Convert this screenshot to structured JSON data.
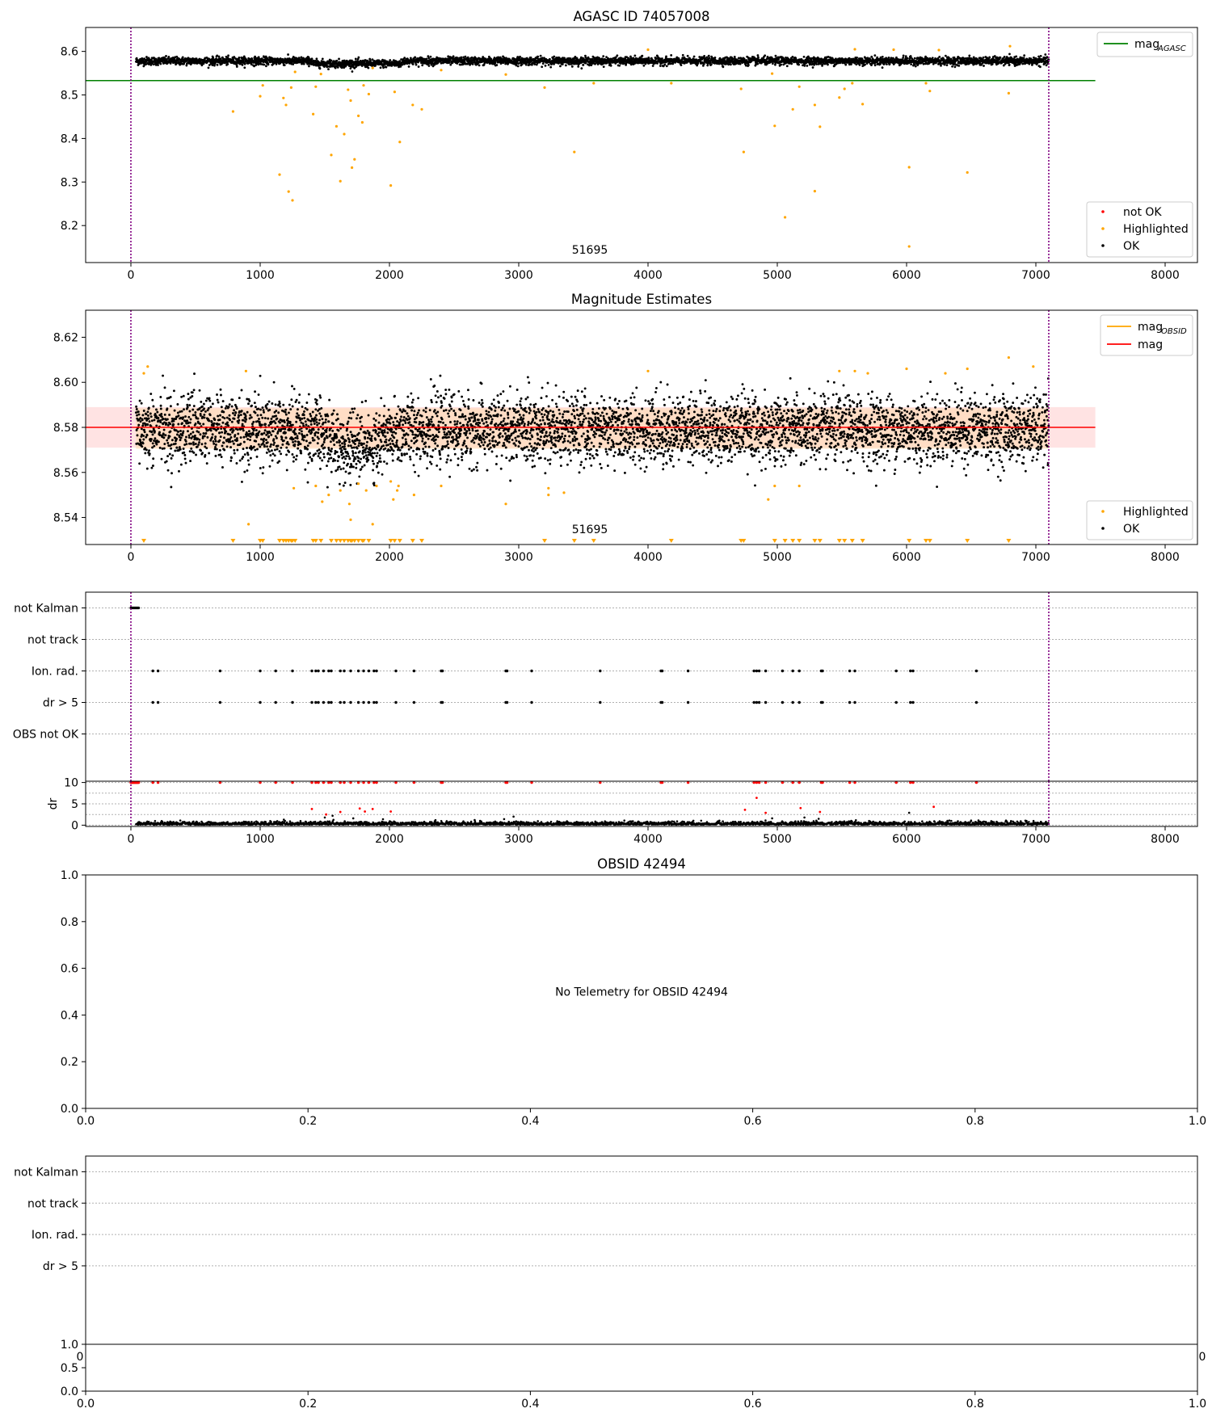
{
  "figure": {
    "panels": [
      "agasc-panel",
      "mag-estimates-panel",
      "flags-panel",
      "dr-panel",
      "obsid-panel",
      "obsid-flags-panel",
      "obsid-dr-panel"
    ]
  },
  "chart_data": [
    {
      "id": "agasc",
      "type": "scatter",
      "title": "AGASC ID 74057008",
      "xlim": [
        -350,
        8250
      ],
      "ylim": [
        8.115,
        8.655
      ],
      "xticks": [
        0,
        1000,
        2000,
        3000,
        4000,
        5000,
        6000,
        7000,
        8000
      ],
      "xtick_labels": [
        "0",
        "1000",
        "2000",
        "3000",
        "4000",
        "5000",
        "6000",
        "7000",
        "8000"
      ],
      "yticks": [
        8.2,
        8.3,
        8.4,
        8.5,
        8.6
      ],
      "ytick_labels": [
        "8.2",
        "8.3",
        "8.4",
        "8.5",
        "8.6"
      ],
      "grid": false,
      "vlines": [
        0,
        7100
      ],
      "annotation": "51695",
      "annotation_pos": [
        3550,
        8.135
      ],
      "mag_agasc": 8.533,
      "mag_agasc_xrange": [
        -350,
        7460
      ],
      "ok_band": {
        "x": [
          40,
          7100
        ],
        "center": 8.578,
        "spread": 0.012
      },
      "highlighted_points": [
        [
          790,
          8.462
        ],
        [
          1000,
          8.497
        ],
        [
          1020,
          8.522
        ],
        [
          1150,
          8.317
        ],
        [
          1180,
          8.493
        ],
        [
          1200,
          8.477
        ],
        [
          1220,
          8.278
        ],
        [
          1240,
          8.517
        ],
        [
          1250,
          8.258
        ],
        [
          1270,
          8.553
        ],
        [
          1410,
          8.456
        ],
        [
          1430,
          8.519
        ],
        [
          1470,
          8.548
        ],
        [
          1550,
          8.362
        ],
        [
          1590,
          8.428
        ],
        [
          1620,
          8.302
        ],
        [
          1650,
          8.41
        ],
        [
          1680,
          8.512
        ],
        [
          1700,
          8.487
        ],
        [
          1710,
          8.333
        ],
        [
          1730,
          8.352
        ],
        [
          1760,
          8.452
        ],
        [
          1790,
          8.437
        ],
        [
          1800,
          8.522
        ],
        [
          1840,
          8.502
        ],
        [
          1870,
          8.562
        ],
        [
          2010,
          8.292
        ],
        [
          2040,
          8.507
        ],
        [
          2080,
          8.392
        ],
        [
          2180,
          8.477
        ],
        [
          2250,
          8.467
        ],
        [
          2400,
          8.557
        ],
        [
          2900,
          8.547
        ],
        [
          3200,
          8.517
        ],
        [
          3430,
          8.369
        ],
        [
          3580,
          8.527
        ],
        [
          4180,
          8.527
        ],
        [
          4720,
          8.514
        ],
        [
          4740,
          8.369
        ],
        [
          4960,
          8.549
        ],
        [
          4980,
          8.429
        ],
        [
          5060,
          8.219
        ],
        [
          5120,
          8.467
        ],
        [
          5170,
          8.519
        ],
        [
          5290,
          8.477
        ],
        [
          5290,
          8.279
        ],
        [
          5330,
          8.427
        ],
        [
          5480,
          8.494
        ],
        [
          5520,
          8.514
        ],
        [
          5580,
          8.527
        ],
        [
          5660,
          8.479
        ],
        [
          6020,
          8.334
        ],
        [
          6020,
          8.152
        ],
        [
          6150,
          8.527
        ],
        [
          6180,
          8.509
        ],
        [
          6470,
          8.322
        ],
        [
          6790,
          8.504
        ],
        [
          6800,
          8.612
        ],
        [
          5600,
          8.605
        ],
        [
          5900,
          8.604
        ],
        [
          4000,
          8.604
        ],
        [
          6250,
          8.603
        ]
      ],
      "legend": [
        {
          "label": "not OK",
          "color": "#ff0000",
          "kind": "dot"
        },
        {
          "label": "Highlighted",
          "color": "#ffa500",
          "kind": "dot"
        },
        {
          "label": "OK",
          "color": "#000000",
          "kind": "dot"
        }
      ],
      "line_legend": [
        {
          "label": "mag",
          "subscript": "AGASC",
          "color": "#008000"
        }
      ]
    },
    {
      "id": "mag-estimates",
      "type": "scatter",
      "title": "Magnitude Estimates",
      "xlim": [
        -350,
        8250
      ],
      "ylim": [
        8.528,
        8.632
      ],
      "xticks": [
        0,
        1000,
        2000,
        3000,
        4000,
        5000,
        6000,
        7000,
        8000
      ],
      "xtick_labels": [
        "0",
        "1000",
        "2000",
        "3000",
        "4000",
        "5000",
        "6000",
        "7000",
        "8000"
      ],
      "yticks": [
        8.54,
        8.56,
        8.58,
        8.6,
        8.62
      ],
      "ytick_labels": [
        "8.54",
        "8.56",
        "8.58",
        "8.60",
        "8.62"
      ],
      "grid": false,
      "vlines": [
        0,
        7100
      ],
      "annotation": "51695",
      "annotation_pos": [
        3550,
        8.533
      ],
      "mag": 8.58,
      "mag_band": [
        8.571,
        8.589
      ],
      "mag_obsid_band": [
        8.5705,
        8.5885
      ],
      "mag_xrange": [
        -350,
        7460
      ],
      "ok_band": {
        "x": [
          40,
          7100
        ],
        "center": 8.579,
        "spread": 0.0075
      },
      "dip": {
        "x": [
          1400,
          2100
        ],
        "depth": 0.008
      },
      "highlighted_points": [
        [
          100,
          8.604
        ],
        [
          130,
          8.607
        ],
        [
          910,
          8.537
        ],
        [
          890,
          8.605
        ],
        [
          1260,
          8.553
        ],
        [
          1430,
          8.554
        ],
        [
          1480,
          8.547
        ],
        [
          1530,
          8.55
        ],
        [
          1620,
          8.552
        ],
        [
          1690,
          8.546
        ],
        [
          1700,
          8.539
        ],
        [
          1760,
          8.555
        ],
        [
          1820,
          8.552
        ],
        [
          1870,
          8.537
        ],
        [
          1900,
          8.554
        ],
        [
          2010,
          8.556
        ],
        [
          2030,
          8.548
        ],
        [
          2060,
          8.552
        ],
        [
          2070,
          8.554
        ],
        [
          2190,
          8.55
        ],
        [
          2400,
          8.554
        ],
        [
          2900,
          8.546
        ],
        [
          3230,
          8.55
        ],
        [
          3230,
          8.553
        ],
        [
          3350,
          8.551
        ],
        [
          4000,
          8.605
        ],
        [
          4930,
          8.548
        ],
        [
          4980,
          8.554
        ],
        [
          5170,
          8.554
        ],
        [
          5480,
          8.605
        ],
        [
          5600,
          8.605
        ],
        [
          5700,
          8.604
        ],
        [
          6000,
          8.606
        ],
        [
          6180,
          8.53
        ],
        [
          6300,
          8.604
        ],
        [
          6470,
          8.606
        ],
        [
          6790,
          8.611
        ],
        [
          6980,
          8.607
        ]
      ],
      "lower_limit_markers": [
        100,
        790,
        1000,
        1020,
        1150,
        1180,
        1200,
        1220,
        1240,
        1250,
        1270,
        1410,
        1430,
        1470,
        1550,
        1590,
        1620,
        1650,
        1680,
        1700,
        1710,
        1730,
        1760,
        1790,
        1800,
        1840,
        2010,
        2040,
        2080,
        2180,
        2250,
        3200,
        3430,
        3580,
        4180,
        4720,
        4740,
        4980,
        5060,
        5120,
        5170,
        5290,
        5330,
        5480,
        5520,
        5580,
        5660,
        6020,
        6150,
        6180,
        6470,
        6790
      ],
      "legend": [
        {
          "label": "Highlighted",
          "color": "#ffa500",
          "kind": "dot"
        },
        {
          "label": "OK",
          "color": "#000000",
          "kind": "dot"
        }
      ],
      "line_legend": [
        {
          "label": "mag",
          "subscript": "OBSID",
          "color": "#ffa500"
        },
        {
          "label": "mag",
          "subscript": "",
          "color": "#ff0000"
        }
      ]
    },
    {
      "id": "flags",
      "type": "scatter",
      "xlim": [
        -350,
        8250
      ],
      "ylim": [
        -0.5,
        5.5
      ],
      "categories": [
        "not Kalman",
        "not track",
        "Ion. rad.",
        "dr > 5",
        "OBS not OK"
      ],
      "vlines": [
        0,
        7100
      ],
      "not_kalman_x": [
        0,
        60
      ],
      "event_x": [
        170,
        210,
        690,
        1000,
        1120,
        1250,
        1400,
        1430,
        1450,
        1490,
        1530,
        1550,
        1620,
        1650,
        1700,
        1760,
        1800,
        1840,
        1880,
        1900,
        2050,
        2190,
        2400,
        2410,
        2900,
        2910,
        3100,
        3630,
        4100,
        4110,
        4310,
        4820,
        4840,
        4860,
        4910,
        5040,
        5120,
        5170,
        5340,
        5350,
        5560,
        5600,
        5920,
        6030,
        6050,
        6540
      ]
    },
    {
      "id": "dr",
      "type": "scatter",
      "ylabel": "dr",
      "xlim": [
        -350,
        8250
      ],
      "ylim": [
        -0.3,
        10.3
      ],
      "xticks": [
        0,
        1000,
        2000,
        3000,
        4000,
        5000,
        6000,
        7000,
        8000
      ],
      "xtick_labels": [
        "0",
        "1000",
        "2000",
        "3000",
        "4000",
        "5000",
        "6000",
        "7000",
        "8000"
      ],
      "yticks": [
        0,
        5,
        10
      ],
      "ytick_labels": [
        "0",
        "5",
        "10"
      ],
      "extra_grid": [
        2.5,
        7.5
      ],
      "vlines": [
        0,
        7100
      ],
      "cap": 10,
      "red_points": [
        [
          1400,
          3.8
        ],
        [
          1510,
          2.5
        ],
        [
          1620,
          3.1
        ],
        [
          1770,
          3.9
        ],
        [
          1810,
          3.2
        ],
        [
          1870,
          3.8
        ],
        [
          2010,
          3.2
        ],
        [
          4750,
          3.6
        ],
        [
          4840,
          6.4
        ],
        [
          4910,
          2.9
        ],
        [
          5180,
          4.0
        ],
        [
          5330,
          3.1
        ],
        [
          6210,
          4.3
        ]
      ],
      "black_outliers": [
        [
          1500,
          1.8
        ],
        [
          1560,
          2.2
        ],
        [
          1720,
          1.6
        ],
        [
          1950,
          1.4
        ],
        [
          2960,
          2.0
        ],
        [
          4960,
          1.6
        ],
        [
          5210,
          1.8
        ],
        [
          5320,
          1.5
        ],
        [
          6020,
          2.9
        ]
      ]
    },
    {
      "id": "obsid",
      "type": "scatter",
      "title": "OBSID 42494",
      "message": "No Telemetry for OBSID 42494",
      "xlim": [
        0,
        1
      ],
      "ylim": [
        0,
        1
      ],
      "xticks": [
        0,
        0.2,
        0.4,
        0.6,
        0.8,
        1.0
      ],
      "xtick_labels": [
        "0.0",
        "0.2",
        "0.4",
        "0.6",
        "0.8",
        "1.0"
      ],
      "yticks": [
        0,
        0.2,
        0.4,
        0.6,
        0.8,
        1.0
      ],
      "ytick_labels": [
        "0.0",
        "0.2",
        "0.4",
        "0.6",
        "0.8",
        "1.0"
      ]
    },
    {
      "id": "obsid-flags",
      "type": "scatter",
      "ylim": [
        -0.5,
        5.5
      ],
      "categories": [
        "not Kalman",
        "not track",
        "Ion. rad.",
        "dr > 5"
      ],
      "hidden_xtick_labels": [
        "0",
        "0"
      ]
    },
    {
      "id": "obsid-dr",
      "type": "scatter",
      "xlim": [
        0,
        1
      ],
      "ylim": [
        0,
        1
      ],
      "xticks": [
        0,
        0.2,
        0.4,
        0.6,
        0.8,
        1.0
      ],
      "xtick_labels": [
        "0.0",
        "0.2",
        "0.4",
        "0.6",
        "0.8",
        "1.0"
      ],
      "yticks": [
        0,
        0.5,
        1.0
      ],
      "ytick_labels": [
        "0.0",
        "0.5",
        "1.0"
      ]
    }
  ]
}
